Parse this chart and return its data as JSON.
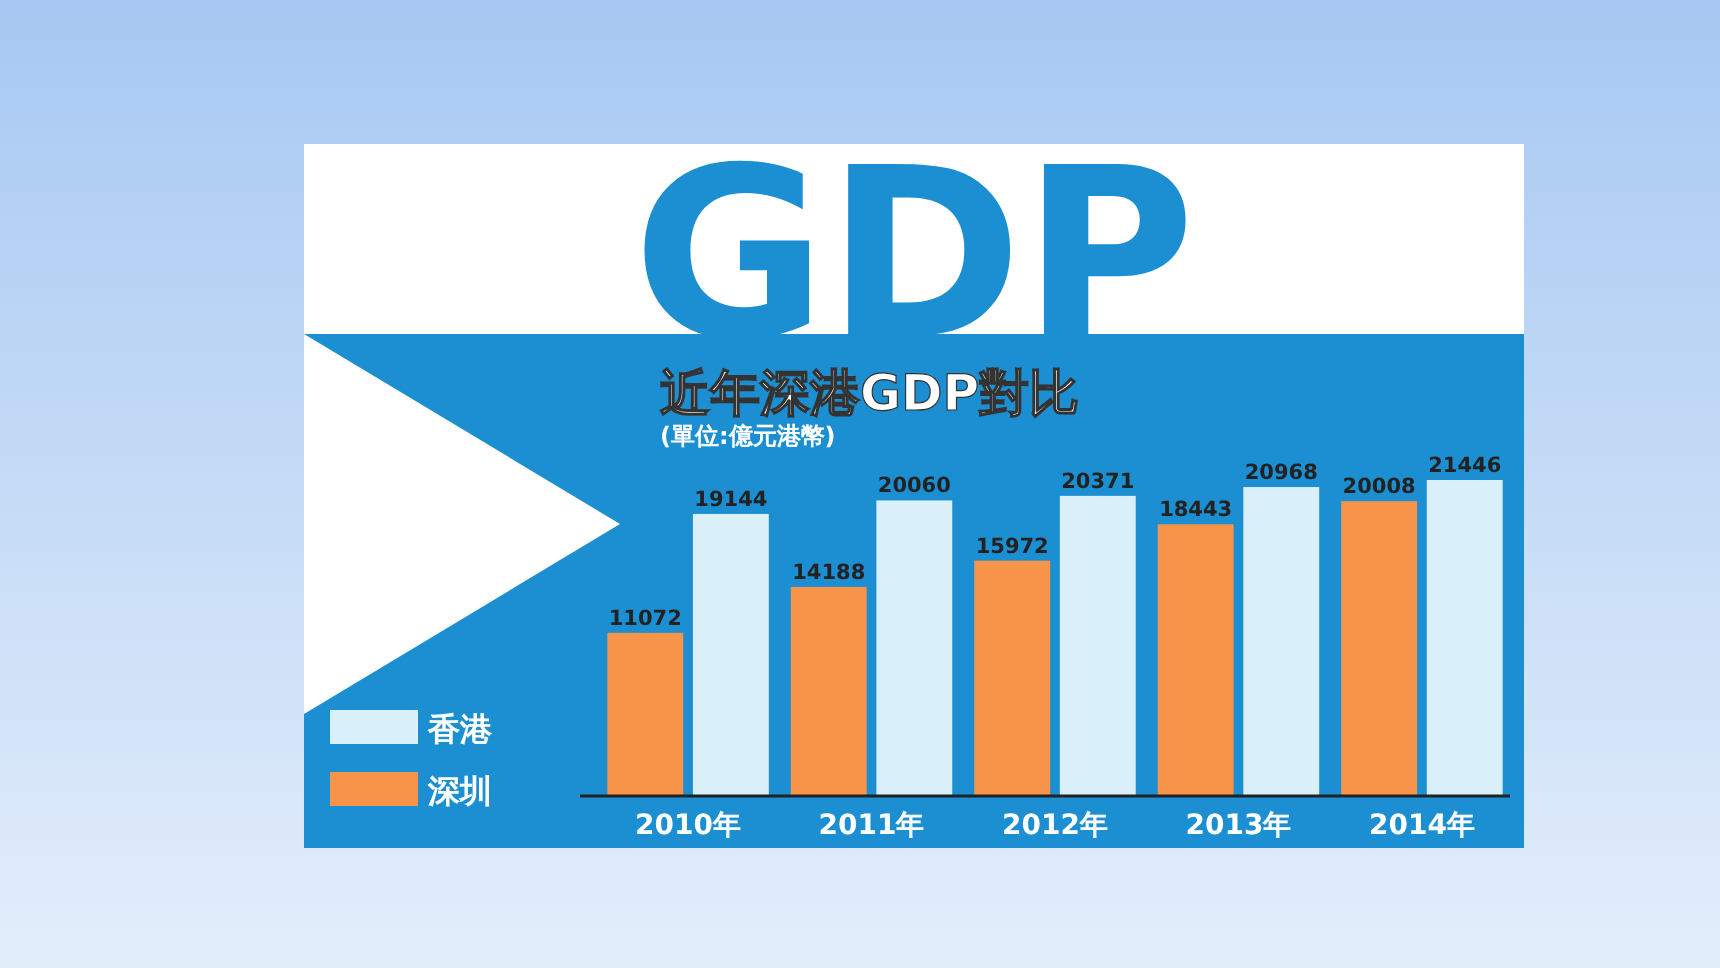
{
  "chart_data": {
    "type": "bar",
    "title": "近年深港GDP對比",
    "subtitle": "(單位:億元港幣)",
    "annotations": [
      "GDP"
    ],
    "categories": [
      "2010年",
      "2011年",
      "2012年",
      "2013年",
      "2014年"
    ],
    "series": [
      {
        "name": "深圳",
        "color": "#f7944a",
        "values": [
          11072,
          14188,
          15972,
          18443,
          20008
        ]
      },
      {
        "name": "香港",
        "color": "#d9f0fa",
        "values": [
          19144,
          20060,
          20371,
          20968,
          21446
        ]
      }
    ],
    "data_labels": true,
    "legend": "bottom left",
    "grid": false
  }
}
